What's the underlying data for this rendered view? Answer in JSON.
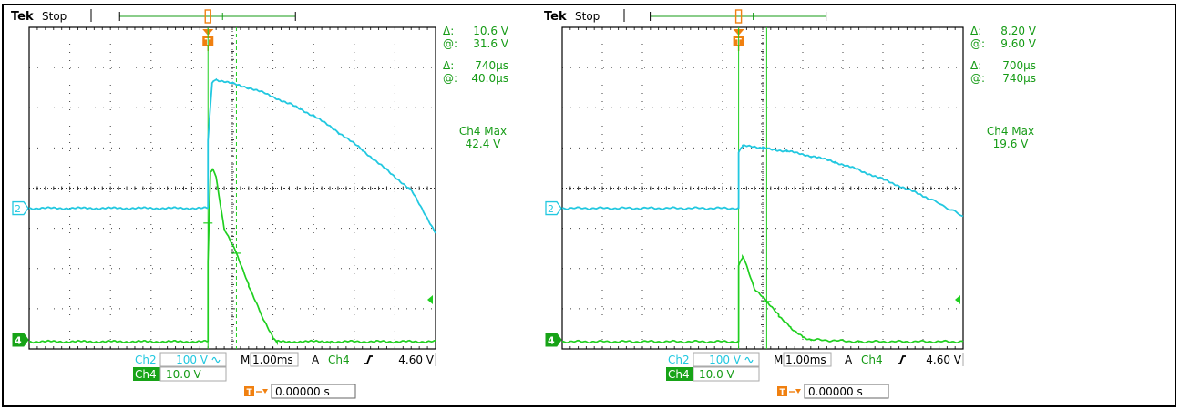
{
  "colors": {
    "ch2": "#22c8e0",
    "ch4": "#20cf20",
    "trigger": "#f08010",
    "grid": "#000000",
    "readout_ch2": "#1aa8c0",
    "readout_ch4": "#159b15"
  },
  "chart_data": [
    {
      "type": "line",
      "brand": "Tek",
      "status": "Stop",
      "x_unit": "ms",
      "xlim": [
        -2.2,
        2.8
      ],
      "divisions": [
        10,
        8
      ],
      "markers": {
        "ch2": "2",
        "ch4": "4",
        "trigger": "T"
      },
      "cursor_readout": {
        "delta_label": "Δ:",
        "at_label": "@:",
        "voltage_delta": "10.6 V",
        "voltage_at": "31.6 V",
        "time_delta": "740µs",
        "time_at": "40.0µs"
      },
      "measurement": {
        "label": "Ch4 Max",
        "value": "42.4 V"
      },
      "cursor_time_ms": 0.35,
      "series": [
        {
          "name": "Ch2",
          "scale": "100 V",
          "coupling_icon": "ac-coupling-icon",
          "x": [
            -2.2,
            0.0,
            0.0,
            0.05,
            0.1,
            0.3,
            0.5,
            0.7,
            1.0,
            1.3,
            1.6,
            1.9,
            2.2,
            2.5,
            2.8
          ],
          "y": [
            0,
            0,
            1.7,
            3.1,
            3.2,
            3.1,
            3.0,
            2.86,
            2.6,
            2.3,
            1.9,
            1.45,
            0.95,
            0.45,
            -0.6
          ]
        },
        {
          "name": "Ch4",
          "scale": "10.0 V",
          "x": [
            -2.2,
            0.0,
            0.0,
            0.03,
            0.06,
            0.1,
            0.2,
            0.35,
            0.5,
            0.65,
            0.8,
            0.85,
            1.5,
            2.8
          ],
          "y": [
            0,
            0,
            2.0,
            4.2,
            4.3,
            4.1,
            2.8,
            2.2,
            1.4,
            0.7,
            0.1,
            0.0,
            0.0,
            0.0
          ]
        }
      ],
      "horizontal": {
        "label": "M",
        "value": "1.00ms"
      },
      "trigger_setup": {
        "label": "A",
        "source": "Ch4",
        "slope_icon": "rising-edge-icon",
        "level": "4.60 V"
      },
      "trigger_position": "0.00000 s"
    },
    {
      "type": "line",
      "brand": "Tek",
      "status": "Stop",
      "x_unit": "ms",
      "xlim": [
        -2.2,
        2.8
      ],
      "divisions": [
        10,
        8
      ],
      "markers": {
        "ch2": "2",
        "ch4": "4",
        "trigger": "T"
      },
      "cursor_readout": {
        "delta_label": "Δ:",
        "at_label": "@:",
        "voltage_delta": "8.20 V",
        "voltage_at": "9.60 V",
        "time_delta": "700µs",
        "time_at": "740µs"
      },
      "measurement": {
        "label": "Ch4 Max",
        "value": "19.6 V"
      },
      "cursor_time_ms": 0.35,
      "series": [
        {
          "name": "Ch2",
          "scale": "100 V",
          "coupling_icon": "ac-coupling-icon",
          "x": [
            -2.2,
            0.0,
            0.0,
            0.05,
            0.3,
            0.6,
            0.9,
            1.2,
            1.5,
            1.8,
            2.1,
            2.4,
            2.8
          ],
          "y": [
            0,
            0,
            1.4,
            1.55,
            1.5,
            1.42,
            1.3,
            1.15,
            0.95,
            0.72,
            0.48,
            0.22,
            -0.2
          ]
        },
        {
          "name": "Ch4",
          "scale": "10.0 V",
          "x": [
            -2.2,
            0.0,
            0.0,
            0.05,
            0.1,
            0.2,
            0.35,
            0.5,
            0.65,
            0.8,
            0.9,
            1.5,
            2.8
          ],
          "y": [
            0,
            0,
            1.9,
            2.1,
            1.9,
            1.3,
            1.0,
            0.65,
            0.35,
            0.12,
            0.05,
            0.0,
            0.0
          ]
        }
      ],
      "horizontal": {
        "label": "M",
        "value": "1.00ms"
      },
      "trigger_setup": {
        "label": "A",
        "source": "Ch4",
        "slope_icon": "rising-edge-icon",
        "level": "4.60 V"
      },
      "trigger_position": "0.00000 s"
    }
  ]
}
